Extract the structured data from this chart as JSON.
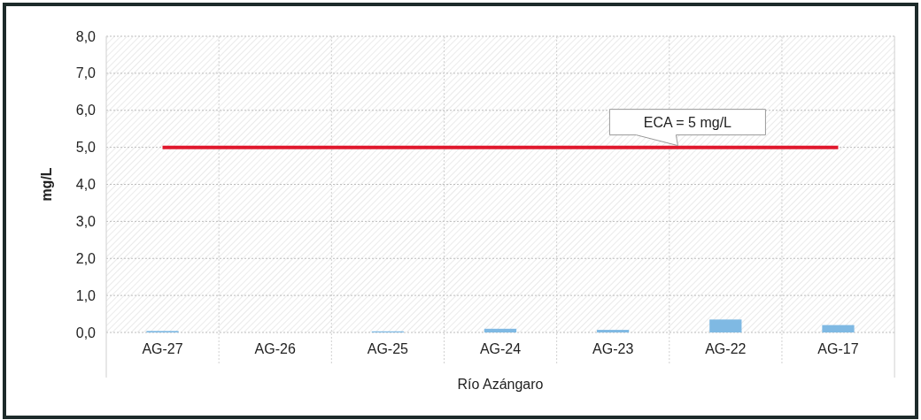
{
  "chart_data": {
    "type": "bar",
    "ylabel": "mg/L",
    "xlabel": "Río Azángaro",
    "categories": [
      "AG-27",
      "AG-26",
      "AG-25",
      "AG-24",
      "AG-23",
      "AG-22",
      "AG-17"
    ],
    "values": [
      0.04,
      null,
      0.03,
      0.1,
      0.07,
      0.35,
      0.2
    ],
    "color": "#7fb9e3",
    "ylim": [
      0,
      8
    ],
    "yticks": [
      {
        "value": 0,
        "label": "0,0"
      },
      {
        "value": 1,
        "label": "1,0"
      },
      {
        "value": 2,
        "label": "2,0"
      },
      {
        "value": 3,
        "label": "3,0"
      },
      {
        "value": 4,
        "label": "4,0"
      },
      {
        "value": 5,
        "label": "5,0"
      },
      {
        "value": 6,
        "label": "6,0"
      },
      {
        "value": 7,
        "label": "7,0"
      },
      {
        "value": 8,
        "label": "8,0"
      }
    ],
    "ref_lines": [
      {
        "axis": "y",
        "value": 5,
        "label": "ECA = 5 mg/L",
        "color": "#e0182d"
      }
    ],
    "grid": true
  }
}
